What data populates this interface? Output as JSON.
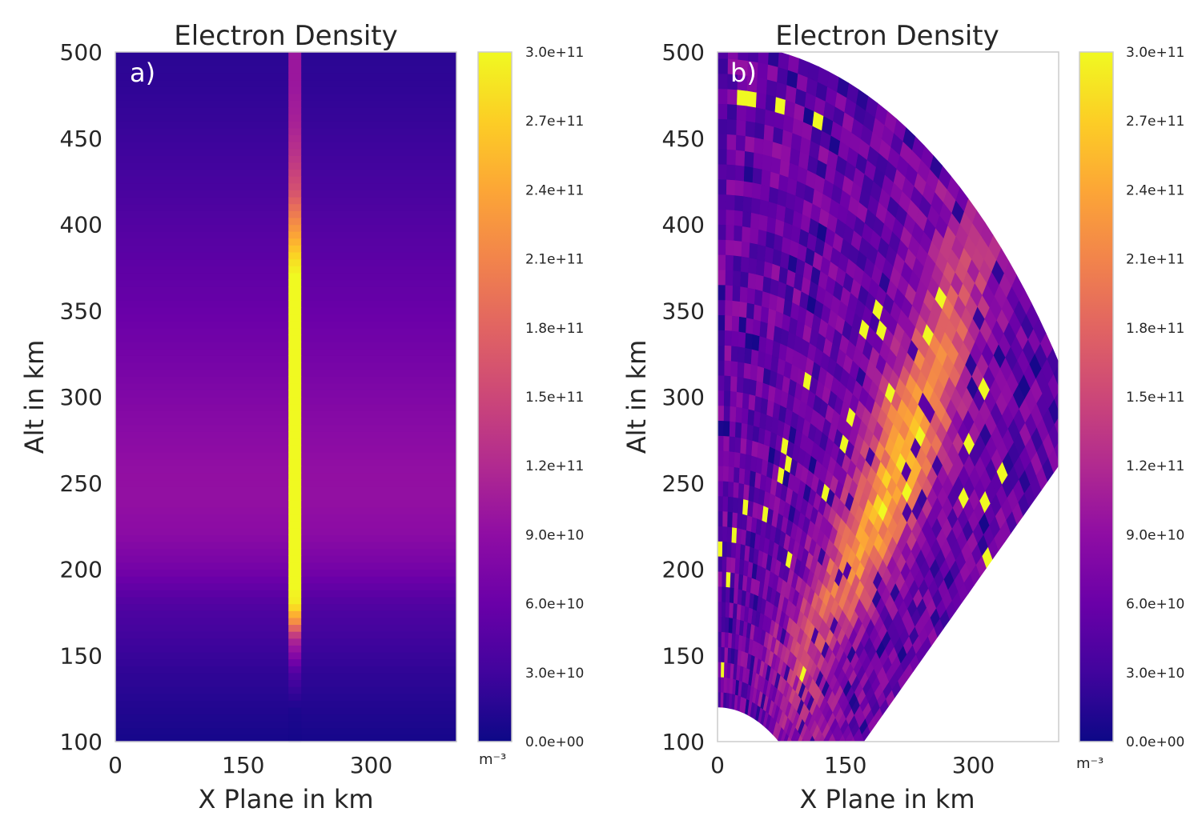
{
  "colormap": [
    "#0d0887",
    "#41049d",
    "#6a00a8",
    "#8f0da4",
    "#b12a90",
    "#cc4778",
    "#e16462",
    "#f2844b",
    "#fca636",
    "#fcce25",
    "#f0f921"
  ],
  "frame_color": "#cccccc",
  "chart_data": [
    {
      "type": "heatmap",
      "panel_label": "a)",
      "title": "Electron Density",
      "xlabel": "X Plane in km",
      "ylabel": "Alt in km",
      "xlim": [
        0,
        400
      ],
      "ylim": [
        100,
        500
      ],
      "xticks": [
        "0",
        "150",
        "300"
      ],
      "xtick_values": [
        0,
        150,
        300
      ],
      "yticks": [
        "100",
        "150",
        "200",
        "250",
        "300",
        "350",
        "400",
        "450",
        "500"
      ],
      "ytick_values": [
        100,
        150,
        200,
        250,
        300,
        350,
        400,
        450,
        500
      ],
      "background_profile": {
        "altitude_km": [
          100,
          120,
          140,
          160,
          180,
          200,
          220,
          240,
          260,
          280,
          300,
          320,
          340,
          360,
          380,
          400,
          420,
          440,
          460,
          480,
          500
        ],
        "density": [
          5000000000.0,
          12000000000.0,
          20000000000.0,
          30000000000.0,
          42000000000.0,
          68000000000.0,
          86000000000.0,
          93000000000.0,
          92000000000.0,
          85000000000.0,
          78000000000.0,
          70000000000.0,
          63000000000.0,
          56000000000.0,
          50000000000.0,
          43000000000.0,
          36000000000.0,
          30000000000.0,
          24000000000.0,
          20000000000.0,
          17000000000.0
        ]
      },
      "beam": {
        "x_range_km": [
          203,
          218
        ],
        "altitude_km": [
          100,
          120,
          140,
          160,
          170,
          180,
          190,
          200,
          220,
          260,
          300,
          340,
          370,
          380,
          390,
          400,
          410,
          420,
          440,
          460,
          480,
          500
        ],
        "density": [
          4000000000.0,
          10000000000.0,
          40000000000.0,
          120000000000.0,
          220000000000.0,
          290000000000.0,
          300000000000.0,
          300000000000.0,
          300000000000.0,
          300000000000.0,
          300000000000.0,
          300000000000.0,
          300000000000.0,
          280000000000.0,
          250000000000.0,
          220000000000.0,
          190000000000.0,
          160000000000.0,
          130000000000.0,
          110000000000.0,
          100000000000.0,
          100000000000.0
        ]
      },
      "colorbar": {
        "min": 0,
        "max": 300000000000.0,
        "ticks": [
          "0.0e+00",
          "3.0e+10",
          "6.0e+10",
          "9.0e+10",
          "1.2e+11",
          "1.5e+11",
          "1.8e+11",
          "2.1e+11",
          "2.4e+11",
          "2.7e+11",
          "3.0e+11"
        ],
        "unit": "m⁻³"
      }
    },
    {
      "type": "heatmap",
      "panel_label": "b)",
      "title": "Electron Density",
      "xlabel": "X Plane in km",
      "ylabel": "Alt in km",
      "xlim": [
        0,
        400
      ],
      "ylim": [
        100,
        500
      ],
      "xticks": [
        "0",
        "150",
        "300"
      ],
      "xtick_values": [
        0,
        150,
        300
      ],
      "yticks": [
        "100",
        "150",
        "200",
        "250",
        "300",
        "350",
        "400",
        "450",
        "500"
      ],
      "ytick_values": [
        100,
        150,
        200,
        250,
        300,
        350,
        400,
        450,
        500
      ],
      "fan": {
        "origin_km": [
          0,
          -20
        ],
        "inner_radius_km": 140,
        "outer_radius_km": 525,
        "angle_left_deg": 90,
        "angle_right_deg": 35
      },
      "high_density_ridge": {
        "x_km": [
          100,
          140,
          170,
          195,
          205,
          215,
          225,
          235,
          250,
          270,
          290
        ],
        "altitude_km": [
          150,
          180,
          210,
          235,
          250,
          260,
          275,
          295,
          320,
          350,
          380
        ],
        "peak_density": 260000000000.0
      },
      "colorbar": {
        "min": 0,
        "max": 300000000000.0,
        "ticks": [
          "0.0e+00",
          "3.0e+10",
          "6.0e+10",
          "9.0e+10",
          "1.2e+11",
          "1.5e+11",
          "1.8e+11",
          "2.1e+11",
          "2.4e+11",
          "2.7e+11",
          "3.0e+11"
        ],
        "unit": "m⁻³"
      }
    }
  ]
}
